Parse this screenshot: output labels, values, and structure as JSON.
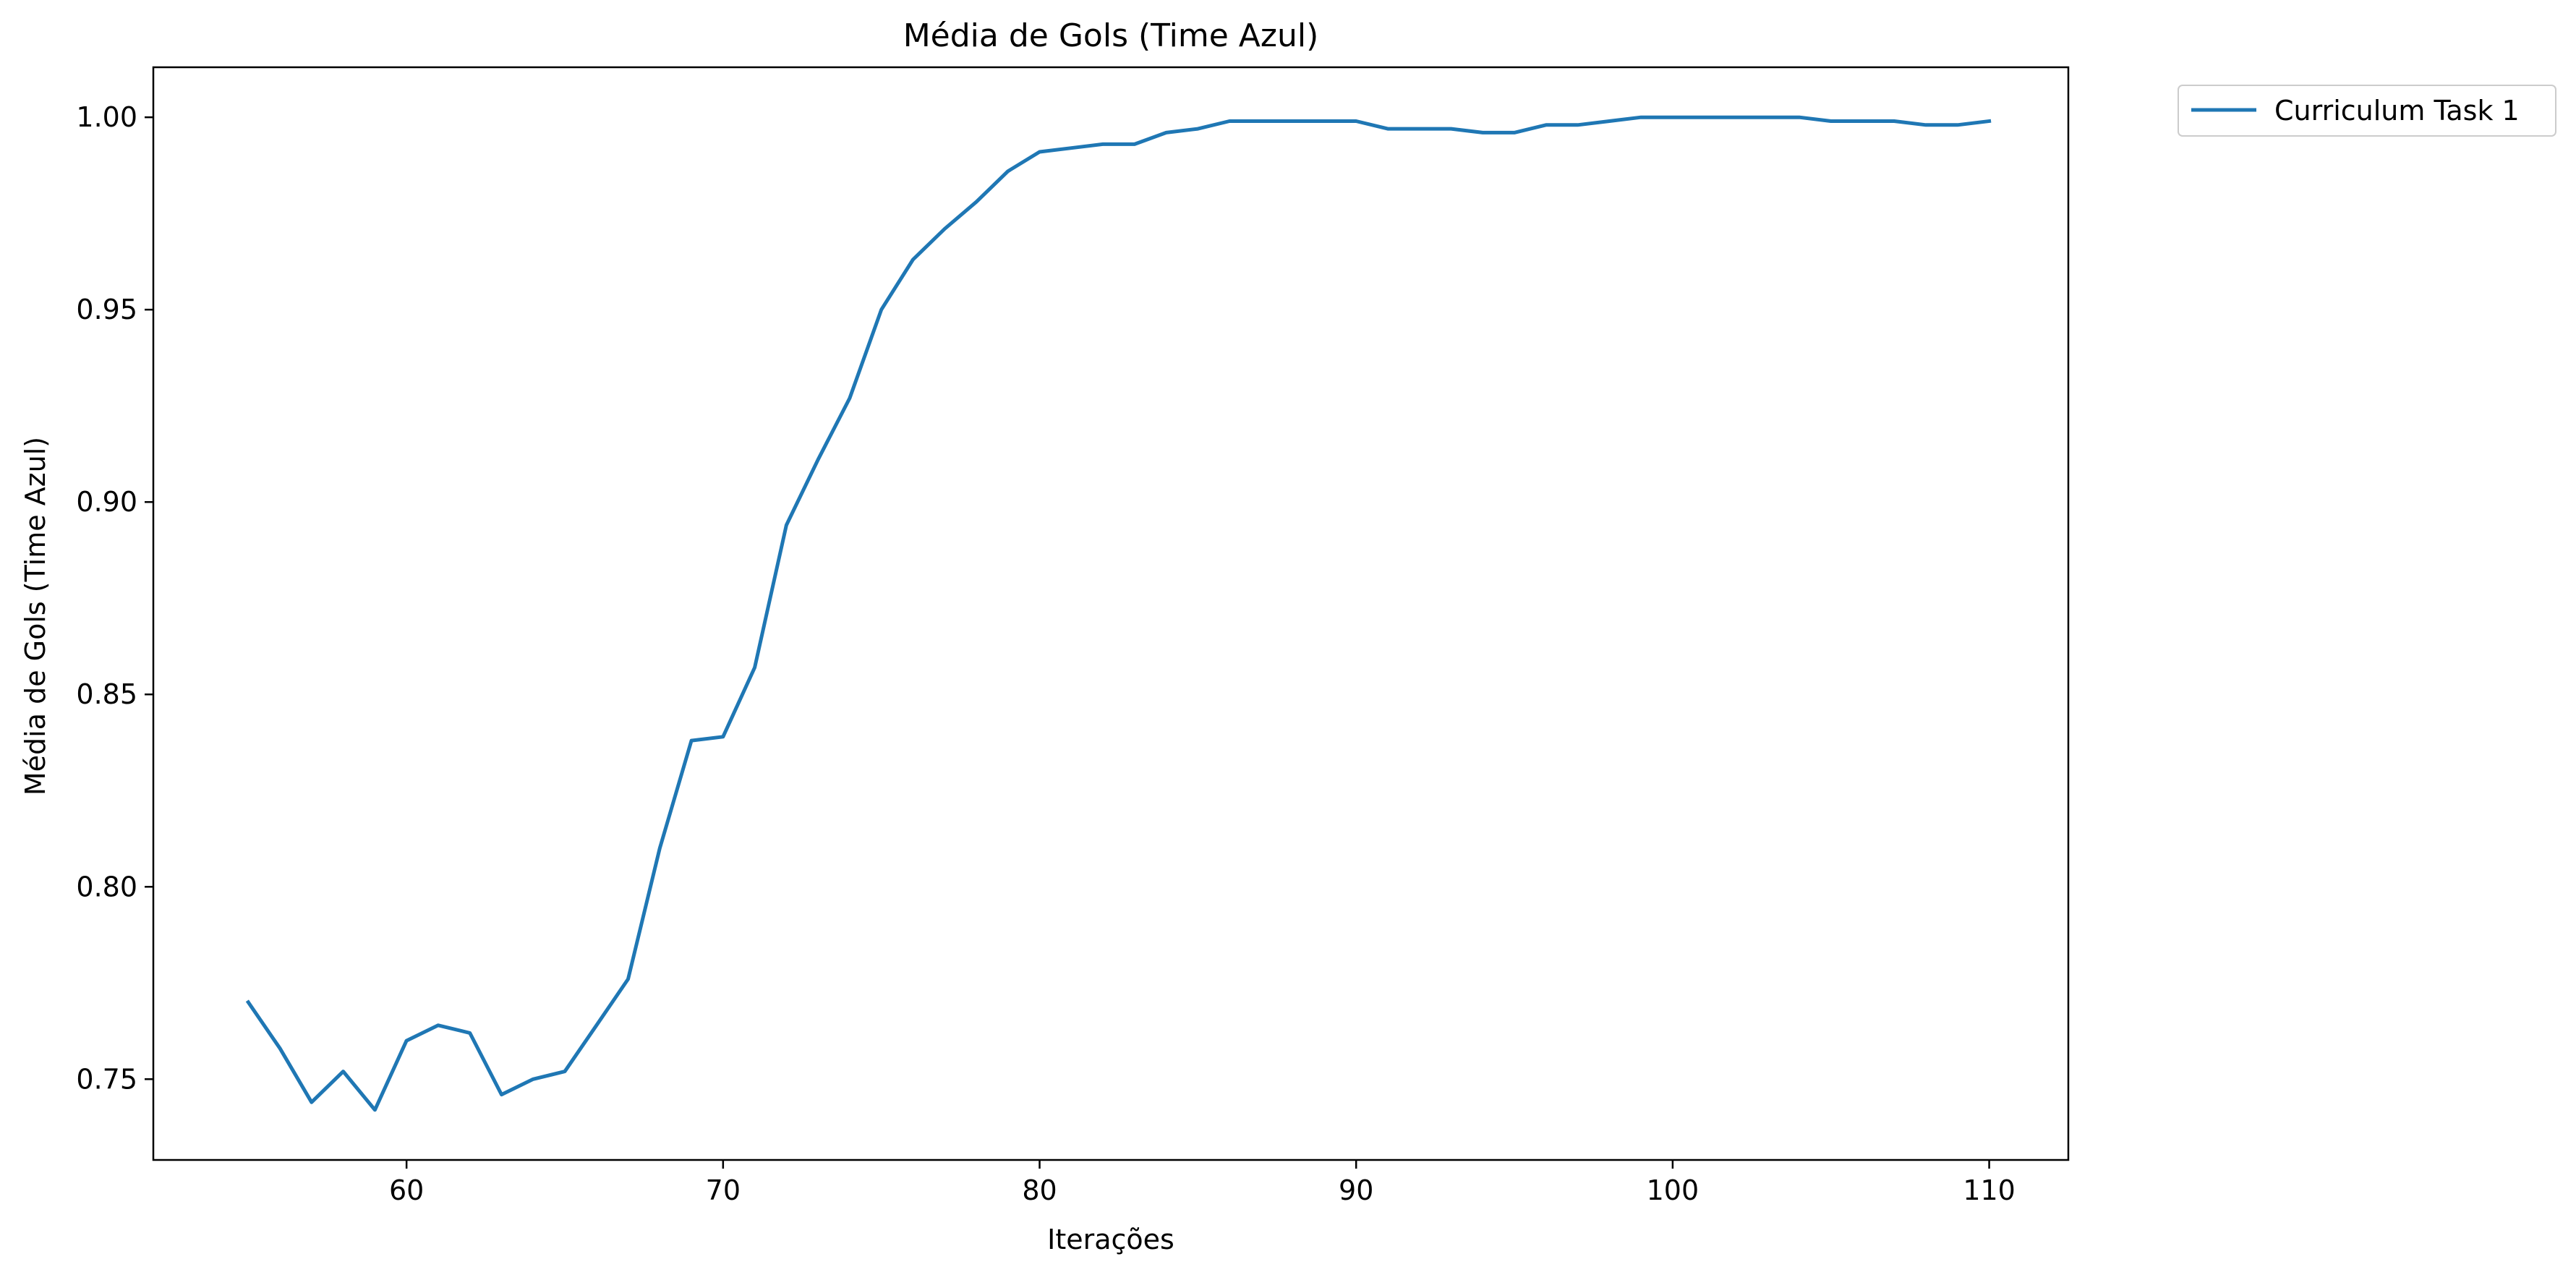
{
  "chart_data": {
    "type": "line",
    "title": "Média de Gols (Time Azul)",
    "xlabel": "Iterações",
    "ylabel": "Média de Gols (Time Azul)",
    "xlim": [
      52,
      112.5
    ],
    "ylim": [
      0.729,
      1.013
    ],
    "xticks": [
      60,
      70,
      80,
      90,
      100,
      110
    ],
    "yticks": [
      0.75,
      0.8,
      0.85,
      0.9,
      0.95,
      1.0
    ],
    "ytick_labels": [
      "0.75",
      "0.80",
      "0.85",
      "0.90",
      "0.95",
      "1.00"
    ],
    "grid": false,
    "legend_position": "outside-top-right",
    "series": [
      {
        "name": "Curriculum Task 1",
        "color": "#1f77b4",
        "x": [
          55,
          56,
          57,
          58,
          59,
          60,
          61,
          62,
          63,
          64,
          65,
          66,
          67,
          68,
          69,
          70,
          71,
          72,
          73,
          74,
          75,
          76,
          77,
          78,
          79,
          80,
          81,
          82,
          83,
          84,
          85,
          86,
          87,
          88,
          89,
          90,
          91,
          92,
          93,
          94,
          95,
          96,
          97,
          98,
          99,
          100,
          101,
          102,
          103,
          104,
          105,
          106,
          107,
          108,
          109,
          110
        ],
        "y": [
          0.77,
          0.758,
          0.744,
          0.752,
          0.742,
          0.76,
          0.764,
          0.762,
          0.746,
          0.75,
          0.752,
          0.764,
          0.776,
          0.81,
          0.838,
          0.839,
          0.857,
          0.894,
          0.911,
          0.927,
          0.95,
          0.963,
          0.971,
          0.978,
          0.986,
          0.991,
          0.992,
          0.993,
          0.993,
          0.996,
          0.997,
          0.999,
          0.999,
          0.999,
          0.999,
          0.999,
          0.997,
          0.997,
          0.997,
          0.996,
          0.996,
          0.998,
          0.998,
          0.999,
          1.0,
          1.0,
          1.0,
          1.0,
          1.0,
          1.0,
          0.999,
          0.999,
          0.999,
          0.998,
          0.998,
          0.999
        ]
      }
    ]
  }
}
